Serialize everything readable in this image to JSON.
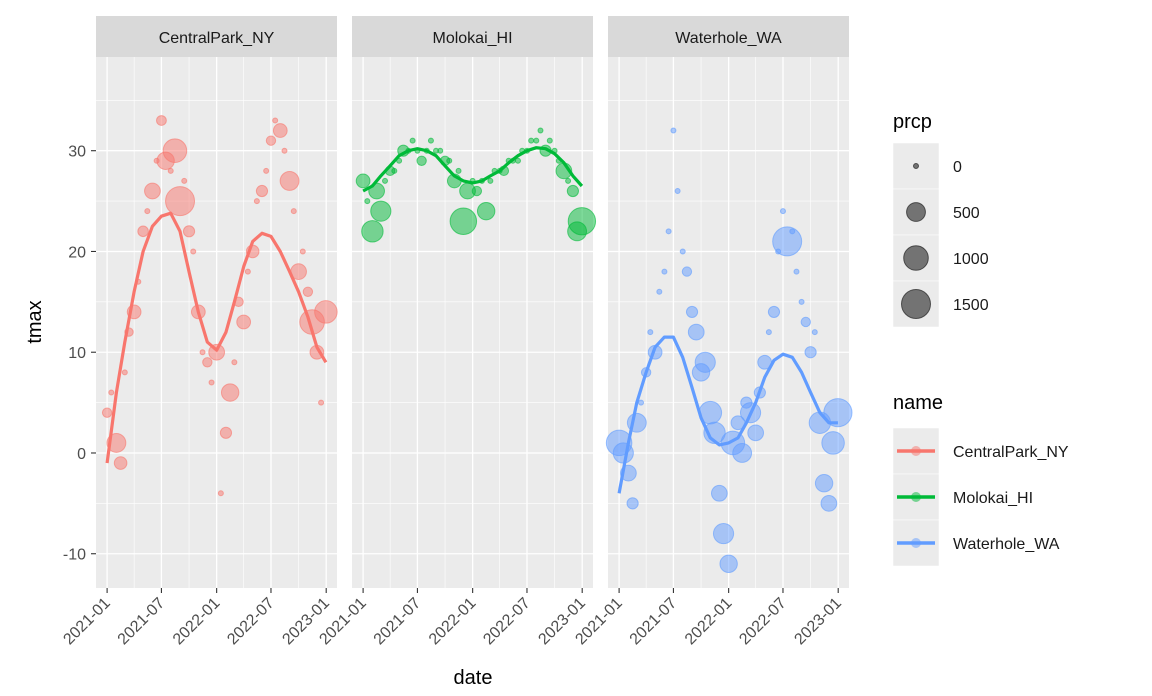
{
  "chart_data": {
    "type": "scatter",
    "facet_by": "name",
    "xlabel": "date",
    "ylabel": "tmax",
    "ylim": [
      -13.4,
      39.3
    ],
    "xlim": [
      "2020-11-25",
      "2023-02-06"
    ],
    "x_ticks": [
      "2021-01",
      "2021-07",
      "2022-01",
      "2022-07",
      "2023-01"
    ],
    "y_ticks": [
      -10,
      0,
      10,
      20,
      30
    ],
    "grid": true,
    "point_alpha": 0.5,
    "size_legend": {
      "title": "prcp",
      "values": [
        0,
        500,
        1000,
        1500
      ]
    },
    "color_legend": {
      "title": "name"
    },
    "legend_placement": "right",
    "panels": [
      {
        "name": "CentralPark_NY",
        "color": "#F8766D",
        "points": [
          [
            "2021-01-01",
            4,
            50
          ],
          [
            "2021-01-15",
            6,
            0
          ],
          [
            "2021-02-01",
            1,
            500
          ],
          [
            "2021-02-15",
            -1,
            150
          ],
          [
            "2021-03-01",
            8,
            0
          ],
          [
            "2021-03-15",
            12,
            30
          ],
          [
            "2021-04-01",
            14,
            200
          ],
          [
            "2021-04-15",
            17,
            0
          ],
          [
            "2021-05-01",
            22,
            80
          ],
          [
            "2021-05-15",
            24,
            0
          ],
          [
            "2021-06-01",
            26,
            300
          ],
          [
            "2021-06-15",
            29,
            0
          ],
          [
            "2021-07-01",
            33,
            60
          ],
          [
            "2021-07-15",
            29,
            400
          ],
          [
            "2021-08-01",
            28,
            0
          ],
          [
            "2021-08-15",
            30,
            900
          ],
          [
            "2021-09-01",
            25,
            1500
          ],
          [
            "2021-09-15",
            27,
            0
          ],
          [
            "2021-10-01",
            22,
            100
          ],
          [
            "2021-10-15",
            20,
            0
          ],
          [
            "2021-11-01",
            14,
            200
          ],
          [
            "2021-11-15",
            10,
            0
          ],
          [
            "2021-12-01",
            9,
            50
          ],
          [
            "2021-12-15",
            7,
            0
          ],
          [
            "2022-01-01",
            10,
            300
          ],
          [
            "2022-01-15",
            -4,
            0
          ],
          [
            "2022-02-01",
            2,
            100
          ],
          [
            "2022-02-15",
            6,
            400
          ],
          [
            "2022-03-01",
            9,
            0
          ],
          [
            "2022-03-15",
            15,
            50
          ],
          [
            "2022-04-01",
            13,
            200
          ],
          [
            "2022-04-15",
            18,
            0
          ],
          [
            "2022-05-01",
            20,
            150
          ],
          [
            "2022-05-15",
            25,
            0
          ],
          [
            "2022-06-01",
            26,
            100
          ],
          [
            "2022-06-15",
            28,
            0
          ],
          [
            "2022-07-01",
            31,
            50
          ],
          [
            "2022-07-15",
            33,
            0
          ],
          [
            "2022-08-01",
            32,
            200
          ],
          [
            "2022-08-15",
            30,
            0
          ],
          [
            "2022-09-01",
            27,
            500
          ],
          [
            "2022-09-15",
            24,
            0
          ],
          [
            "2022-10-01",
            18,
            300
          ],
          [
            "2022-10-15",
            20,
            0
          ],
          [
            "2022-11-01",
            16,
            50
          ],
          [
            "2022-11-15",
            13,
            1000
          ],
          [
            "2022-12-01",
            10,
            200
          ],
          [
            "2022-12-15",
            5,
            0
          ],
          [
            "2022-12-31",
            14,
            800
          ]
        ],
        "smooth": [
          [
            "2021-01-01",
            -1
          ],
          [
            "2021-02-01",
            6
          ],
          [
            "2021-03-01",
            11
          ],
          [
            "2021-04-01",
            16
          ],
          [
            "2021-05-01",
            20
          ],
          [
            "2021-06-01",
            22.5
          ],
          [
            "2021-07-01",
            23.5
          ],
          [
            "2021-08-01",
            23.8
          ],
          [
            "2021-09-01",
            22
          ],
          [
            "2021-10-01",
            18
          ],
          [
            "2021-11-01",
            14
          ],
          [
            "2021-12-01",
            11
          ],
          [
            "2022-01-01",
            10.2
          ],
          [
            "2022-02-01",
            12
          ],
          [
            "2022-03-01",
            15
          ],
          [
            "2022-04-01",
            18.5
          ],
          [
            "2022-05-01",
            21
          ],
          [
            "2022-06-01",
            21.8
          ],
          [
            "2022-07-01",
            21.5
          ],
          [
            "2022-08-01",
            20
          ],
          [
            "2022-09-01",
            18
          ],
          [
            "2022-10-01",
            16
          ],
          [
            "2022-11-01",
            13.5
          ],
          [
            "2022-12-01",
            10.5
          ],
          [
            "2022-12-31",
            9
          ]
        ]
      },
      {
        "name": "Molokai_HI",
        "color": "#00BA38",
        "points": [
          [
            "2021-01-01",
            27,
            200
          ],
          [
            "2021-01-15",
            25,
            0
          ],
          [
            "2021-02-01",
            22,
            700
          ],
          [
            "2021-02-15",
            26,
            300
          ],
          [
            "2021-03-01",
            24,
            600
          ],
          [
            "2021-03-15",
            27,
            0
          ],
          [
            "2021-04-01",
            28,
            50
          ],
          [
            "2021-04-15",
            28,
            0
          ],
          [
            "2021-05-01",
            29,
            0
          ],
          [
            "2021-05-15",
            30,
            100
          ],
          [
            "2021-06-01",
            30,
            0
          ],
          [
            "2021-06-15",
            31,
            0
          ],
          [
            "2021-07-01",
            30,
            0
          ],
          [
            "2021-07-15",
            29,
            50
          ],
          [
            "2021-08-01",
            30,
            0
          ],
          [
            "2021-08-15",
            31,
            0
          ],
          [
            "2021-09-01",
            30,
            0
          ],
          [
            "2021-09-15",
            30,
            0
          ],
          [
            "2021-10-01",
            29,
            50
          ],
          [
            "2021-10-15",
            29,
            0
          ],
          [
            "2021-11-01",
            27,
            200
          ],
          [
            "2021-11-15",
            28,
            0
          ],
          [
            "2021-12-01",
            23,
            1200
          ],
          [
            "2021-12-15",
            26,
            300
          ],
          [
            "2022-01-01",
            27,
            0
          ],
          [
            "2022-01-15",
            26,
            50
          ],
          [
            "2022-02-01",
            27,
            0
          ],
          [
            "2022-02-15",
            24,
            400
          ],
          [
            "2022-03-01",
            27,
            0
          ],
          [
            "2022-03-15",
            28,
            0
          ],
          [
            "2022-04-01",
            28,
            0
          ],
          [
            "2022-04-15",
            28,
            50
          ],
          [
            "2022-05-01",
            29,
            0
          ],
          [
            "2022-05-15",
            29,
            0
          ],
          [
            "2022-06-01",
            29,
            0
          ],
          [
            "2022-06-15",
            30,
            0
          ],
          [
            "2022-07-01",
            30,
            0
          ],
          [
            "2022-07-15",
            31,
            0
          ],
          [
            "2022-08-01",
            31,
            0
          ],
          [
            "2022-08-15",
            32,
            0
          ],
          [
            "2022-09-01",
            30,
            100
          ],
          [
            "2022-09-15",
            31,
            0
          ],
          [
            "2022-10-01",
            30,
            0
          ],
          [
            "2022-10-15",
            29,
            0
          ],
          [
            "2022-11-01",
            28,
            300
          ],
          [
            "2022-11-15",
            27,
            0
          ],
          [
            "2022-12-01",
            26,
            100
          ],
          [
            "2022-12-15",
            22,
            500
          ],
          [
            "2022-12-31",
            23,
            1300
          ]
        ],
        "smooth": [
          [
            "2021-01-01",
            26
          ],
          [
            "2021-02-01",
            26.5
          ],
          [
            "2021-03-01",
            27.5
          ],
          [
            "2021-04-01",
            28.5
          ],
          [
            "2021-05-01",
            29.5
          ],
          [
            "2021-06-01",
            30
          ],
          [
            "2021-07-01",
            30.2
          ],
          [
            "2021-08-01",
            30
          ],
          [
            "2021-09-01",
            29.5
          ],
          [
            "2021-10-01",
            28.5
          ],
          [
            "2021-11-01",
            27.5
          ],
          [
            "2021-12-01",
            27
          ],
          [
            "2022-01-01",
            26.8
          ],
          [
            "2022-02-01",
            27
          ],
          [
            "2022-03-01",
            27.5
          ],
          [
            "2022-04-01",
            28
          ],
          [
            "2022-05-01",
            28.8
          ],
          [
            "2022-06-01",
            29.5
          ],
          [
            "2022-07-01",
            30
          ],
          [
            "2022-08-01",
            30.3
          ],
          [
            "2022-09-01",
            30.2
          ],
          [
            "2022-10-01",
            29.7
          ],
          [
            "2022-11-01",
            28.8
          ],
          [
            "2022-12-01",
            27.5
          ],
          [
            "2022-12-31",
            26.5
          ]
        ]
      },
      {
        "name": "Waterhole_WA",
        "color": "#619CFF",
        "points": [
          [
            "2021-01-01",
            1,
            1100
          ],
          [
            "2021-01-15",
            0,
            600
          ],
          [
            "2021-02-01",
            -2,
            300
          ],
          [
            "2021-02-15",
            -5,
            100
          ],
          [
            "2021-03-01",
            3,
            500
          ],
          [
            "2021-03-15",
            5,
            0
          ],
          [
            "2021-04-01",
            8,
            50
          ],
          [
            "2021-04-15",
            12,
            0
          ],
          [
            "2021-05-01",
            10,
            200
          ],
          [
            "2021-05-15",
            16,
            0
          ],
          [
            "2021-06-01",
            18,
            0
          ],
          [
            "2021-06-15",
            22,
            0
          ],
          [
            "2021-07-01",
            32,
            0
          ],
          [
            "2021-07-15",
            26,
            0
          ],
          [
            "2021-08-01",
            20,
            0
          ],
          [
            "2021-08-15",
            18,
            50
          ],
          [
            "2021-09-01",
            14,
            100
          ],
          [
            "2021-09-15",
            12,
            300
          ],
          [
            "2021-10-01",
            8,
            400
          ],
          [
            "2021-10-15",
            9,
            600
          ],
          [
            "2021-11-01",
            4,
            800
          ],
          [
            "2021-11-15",
            2,
            700
          ],
          [
            "2021-12-01",
            -4,
            300
          ],
          [
            "2021-12-15",
            -8,
            600
          ],
          [
            "2022-01-01",
            -11,
            400
          ],
          [
            "2022-01-15",
            1,
            900
          ],
          [
            "2022-02-01",
            3,
            200
          ],
          [
            "2022-02-15",
            0,
            500
          ],
          [
            "2022-03-01",
            5,
            100
          ],
          [
            "2022-03-15",
            4,
            600
          ],
          [
            "2022-04-01",
            2,
            300
          ],
          [
            "2022-04-15",
            6,
            100
          ],
          [
            "2022-05-01",
            9,
            200
          ],
          [
            "2022-05-15",
            12,
            0
          ],
          [
            "2022-06-01",
            14,
            100
          ],
          [
            "2022-06-15",
            20,
            0
          ],
          [
            "2022-07-01",
            24,
            0
          ],
          [
            "2022-07-15",
            21,
            1500
          ],
          [
            "2022-08-01",
            22,
            0
          ],
          [
            "2022-08-15",
            18,
            0
          ],
          [
            "2022-09-01",
            15,
            0
          ],
          [
            "2022-09-15",
            13,
            50
          ],
          [
            "2022-10-01",
            10,
            100
          ],
          [
            "2022-10-15",
            12,
            0
          ],
          [
            "2022-11-01",
            3,
            700
          ],
          [
            "2022-11-15",
            -3,
            400
          ],
          [
            "2022-12-01",
            -5,
            300
          ],
          [
            "2022-12-15",
            1,
            800
          ],
          [
            "2022-12-31",
            4,
            1400
          ]
        ],
        "smooth": [
          [
            "2021-01-01",
            -4
          ],
          [
            "2021-02-01",
            1
          ],
          [
            "2021-03-01",
            5
          ],
          [
            "2021-04-01",
            8
          ],
          [
            "2021-05-01",
            10.5
          ],
          [
            "2021-06-01",
            11.5
          ],
          [
            "2021-07-01",
            11.5
          ],
          [
            "2021-08-01",
            9.5
          ],
          [
            "2021-09-01",
            6.5
          ],
          [
            "2021-10-01",
            3.5
          ],
          [
            "2021-11-01",
            1.5
          ],
          [
            "2021-12-01",
            0.8
          ],
          [
            "2022-01-01",
            1
          ],
          [
            "2022-02-01",
            1.5
          ],
          [
            "2022-03-01",
            3
          ],
          [
            "2022-04-01",
            5
          ],
          [
            "2022-05-01",
            7.5
          ],
          [
            "2022-06-01",
            9.2
          ],
          [
            "2022-07-01",
            9.8
          ],
          [
            "2022-08-01",
            9.5
          ],
          [
            "2022-09-01",
            8
          ],
          [
            "2022-10-01",
            6
          ],
          [
            "2022-11-01",
            4
          ],
          [
            "2022-12-01",
            3
          ],
          [
            "2022-12-31",
            3
          ]
        ]
      }
    ]
  }
}
